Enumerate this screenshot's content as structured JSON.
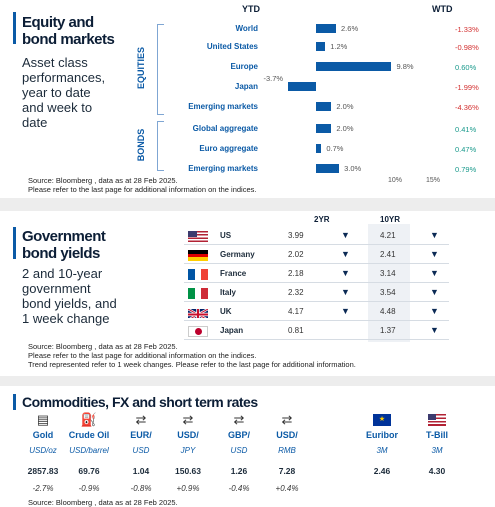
{
  "equity": {
    "title_line1": "Equity and",
    "title_line2": "bond markets",
    "subtitle": [
      "Asset class",
      "performances,",
      "year to date",
      "and week to",
      "date"
    ],
    "ytd_label": "YTD",
    "wtd_label": "WTD",
    "section_equities": "EQUITIES",
    "section_bonds": "BONDS",
    "axis_ticks": [
      "10%",
      "15%"
    ],
    "source_line1": "Source: Bloomberg , data as at 28 Feb 2025.",
    "source_line2": "Please refer to the last page for additional information on the indices."
  },
  "chart_data": {
    "type": "bar",
    "orientation": "horizontal",
    "categories": [
      "World",
      "United States",
      "Europe",
      "Japan",
      "Emerging markets",
      "Global aggregate",
      "Euro aggregate",
      "Emerging markets"
    ],
    "series": [
      {
        "name": "YTD",
        "values": [
          2.6,
          1.2,
          9.8,
          -3.7,
          2.0,
          2.0,
          0.7,
          3.0
        ]
      },
      {
        "name": "WTD",
        "values": [
          -1.33,
          -0.98,
          0.6,
          -1.99,
          -4.36,
          0.41,
          0.47,
          0.79
        ]
      }
    ],
    "value_labels": [
      "2.6%",
      "1.2%",
      "9.8%",
      "-3.7%",
      "2.0%",
      "2.0%",
      "0.7%",
      "3.0%"
    ],
    "wtd_labels": [
      "-1.33%",
      "-0.98%",
      "0.60%",
      "-1.99%",
      "-4.36%",
      "0.41%",
      "0.47%",
      "0.79%"
    ],
    "xlim": [
      -5,
      15
    ],
    "colors": {
      "bar": "#0b5aa6",
      "negative": "#d32f2f",
      "positive": "#1a9a8c"
    }
  },
  "yields": {
    "title_line1": "Government",
    "title_line2": "bond yields",
    "subtitle": [
      "2 and 10-year",
      "government",
      "bond yields, and",
      "1 week change"
    ],
    "col_2yr": "2YR",
    "col_10yr": "10YR",
    "rows": [
      {
        "country": "US",
        "flag": "us-flag-icon",
        "y2": "3.99",
        "y2_dir": "▼",
        "y10": "4.21",
        "y10_dir": "▼"
      },
      {
        "country": "Germany",
        "flag": "germany-flag-icon",
        "y2": "2.02",
        "y2_dir": "▼",
        "y10": "2.41",
        "y10_dir": "▼"
      },
      {
        "country": "France",
        "flag": "france-flag-icon",
        "y2": "2.18",
        "y2_dir": "▼",
        "y10": "3.14",
        "y10_dir": "▼"
      },
      {
        "country": "Italy",
        "flag": "italy-flag-icon",
        "y2": "2.32",
        "y2_dir": "▼",
        "y10": "3.54",
        "y10_dir": "▼"
      },
      {
        "country": "UK",
        "flag": "uk-flag-icon",
        "y2": "4.17",
        "y2_dir": "▼",
        "y10": "4.48",
        "y10_dir": "▼"
      },
      {
        "country": "Japan",
        "flag": "japan-flag-icon",
        "y2": "0.81",
        "y2_dir": "",
        "y10": "1.37",
        "y10_dir": "▼"
      }
    ],
    "source_line1": "Source: Bloomberg , data as at 28 Feb 2025.",
    "source_line2": "Please refer to the last page for additional information on the indices.",
    "source_line3": "Trend represented refer to 1 week changes. Please refer to the last page for additional information."
  },
  "commodities": {
    "title": "Commodities, FX and short term rates",
    "items": [
      {
        "name": "Gold",
        "unit": "USD/oz",
        "value": "2857.83",
        "change": "-2.7%",
        "icon": "gold-bars-icon"
      },
      {
        "name": "Crude Oil",
        "unit": "USD/barrel",
        "value": "69.76",
        "change": "-0.9%",
        "icon": "oil-pump-icon"
      },
      {
        "name": "EUR/",
        "unit": "USD",
        "value": "1.04",
        "change": "-0.8%",
        "icon": "currency-exchange-icon"
      },
      {
        "name": "USD/",
        "unit": "JPY",
        "value": "150.63",
        "change": "+0.9%",
        "icon": "currency-exchange-icon"
      },
      {
        "name": "GBP/",
        "unit": "USD",
        "value": "1.26",
        "change": "-0.4%",
        "icon": "currency-exchange-icon"
      },
      {
        "name": "USD/",
        "unit": "RMB",
        "value": "7.28",
        "change": "+0.4%",
        "icon": "currency-exchange-icon"
      },
      {
        "name": "Euribor",
        "unit": "3M",
        "value": "2.46",
        "change": "",
        "icon": "eu-flag-icon"
      },
      {
        "name": "T-Bill",
        "unit": "3M",
        "value": "4.30",
        "change": "",
        "icon": "us-flag-icon"
      }
    ],
    "source": "Source: Bloomberg , data as at 28 Feb 2025."
  }
}
